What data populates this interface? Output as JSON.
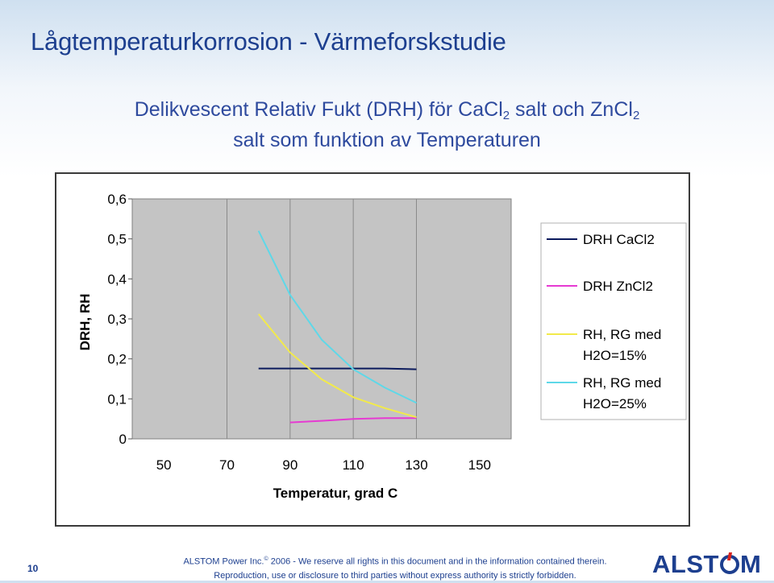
{
  "slide": {
    "title": "Lågtemperaturkorrosion - Värmeforskstudie",
    "subtitle_part1": "Delikvescent Relativ Fukt (DRH) för CaCl",
    "subtitle_sub1": "2",
    "subtitle_part2": " salt och ZnCl",
    "subtitle_sub2": "2",
    "subtitle_line2": "salt som funktion av Temperaturen"
  },
  "chart_data": {
    "type": "line",
    "title": "",
    "xlabel": "Temperatur, grad C",
    "ylabel": "DRH, RH",
    "xlim": [
      40,
      160
    ],
    "ylim": [
      0,
      0.6
    ],
    "xticks": [
      50,
      70,
      90,
      110,
      130,
      150
    ],
    "xtick_labels": [
      "50",
      "70",
      "90",
      "110",
      "130",
      "150"
    ],
    "yticks": [
      0,
      0.1,
      0.2,
      0.3,
      0.4,
      0.5,
      0.6
    ],
    "ytick_labels": [
      "0",
      "0,1",
      "0,2",
      "0,3",
      "0,4",
      "0,5",
      "0,6"
    ],
    "grid": "vertical",
    "legend_position": "right",
    "series": [
      {
        "name": "DRH CaCl2",
        "color": "#0b1a5c",
        "points": [
          [
            80,
            0.176
          ],
          [
            90,
            0.176
          ],
          [
            100,
            0.176
          ],
          [
            110,
            0.176
          ],
          [
            120,
            0.176
          ],
          [
            130,
            0.174
          ]
        ]
      },
      {
        "name": "DRH ZnCl2",
        "color": "#e63ad2",
        "points": [
          [
            90,
            0.041
          ],
          [
            100,
            0.045
          ],
          [
            110,
            0.05
          ],
          [
            120,
            0.052
          ],
          [
            130,
            0.052
          ]
        ]
      },
      {
        "name": "RH, RG med H2O=15%",
        "color": "#f2ea4a",
        "points": [
          [
            80,
            0.312
          ],
          [
            90,
            0.216
          ],
          [
            100,
            0.149
          ],
          [
            110,
            0.104
          ],
          [
            120,
            0.077
          ],
          [
            130,
            0.054
          ]
        ]
      },
      {
        "name": "RH, RG med H2O=25%",
        "color": "#5ed8e8",
        "points": [
          [
            80,
            0.52
          ],
          [
            90,
            0.36
          ],
          [
            100,
            0.248
          ],
          [
            110,
            0.174
          ],
          [
            120,
            0.128
          ],
          [
            130,
            0.09
          ]
        ]
      }
    ],
    "legend_labels": [
      [
        "DRH CaCl2"
      ],
      [
        "DRH ZnCl2"
      ],
      [
        "RH, RG med",
        "H2O=15%"
      ],
      [
        "RH, RG med",
        "H2O=25%"
      ]
    ]
  },
  "footer": {
    "page_number": "10",
    "copyright_prefix": "ALSTOM Power Inc.",
    "copyright_symbol": "©",
    "copyright_suffix": " 2006 - We reserve all rights in this document and in the information contained therein.",
    "copyright_line2": "Reproduction, use or disclosure to third parties without express authority is strictly forbidden.",
    "logo_left": "ALST",
    "logo_right": "M"
  }
}
